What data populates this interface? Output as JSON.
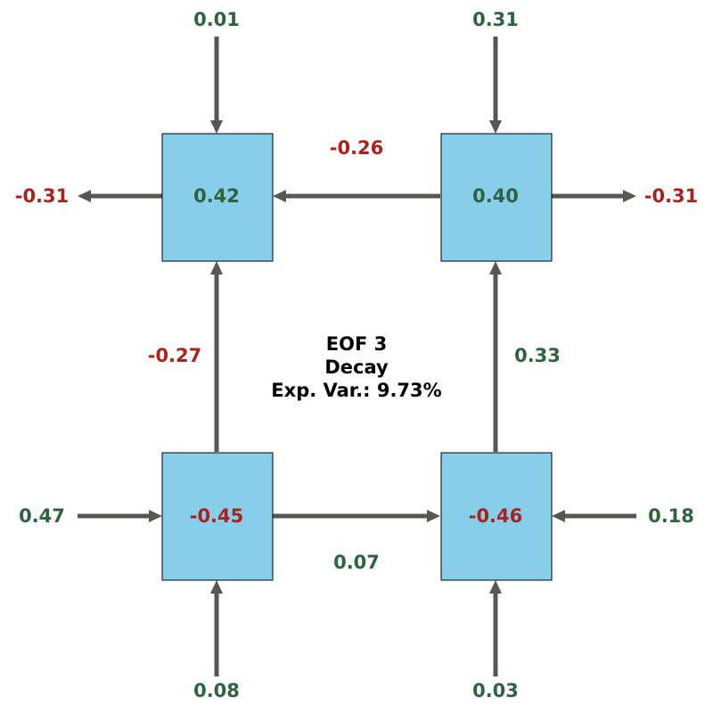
{
  "colors": {
    "positive": "#2f6241",
    "negative": "#a8231b",
    "box_fill": "#87ceeb",
    "arrow": "#585650"
  },
  "title": {
    "line1": "EOF 3",
    "line2": "Decay",
    "line3": "Exp. Var.: 9.73%"
  },
  "nodes": {
    "top_left": "0.42",
    "top_right": "0.40",
    "bottom_left": "-0.45",
    "bottom_right": "-0.46"
  },
  "flows": {
    "top_left_inflow_top": "0.01",
    "top_right_inflow_top": "0.31",
    "top_left_outflow_left": "-0.31",
    "top_right_outflow_right": "-0.31",
    "top_right_to_top_left": "-0.26",
    "bottom_left_to_top_left": "-0.27",
    "bottom_right_to_top_right": "0.33",
    "bottom_left_inflow_left": "0.47",
    "bottom_right_inflow_right": "0.18",
    "bottom_left_to_bottom_right": "0.07",
    "bottom_left_inflow_bottom": "0.08",
    "bottom_right_inflow_bottom": "0.03"
  }
}
